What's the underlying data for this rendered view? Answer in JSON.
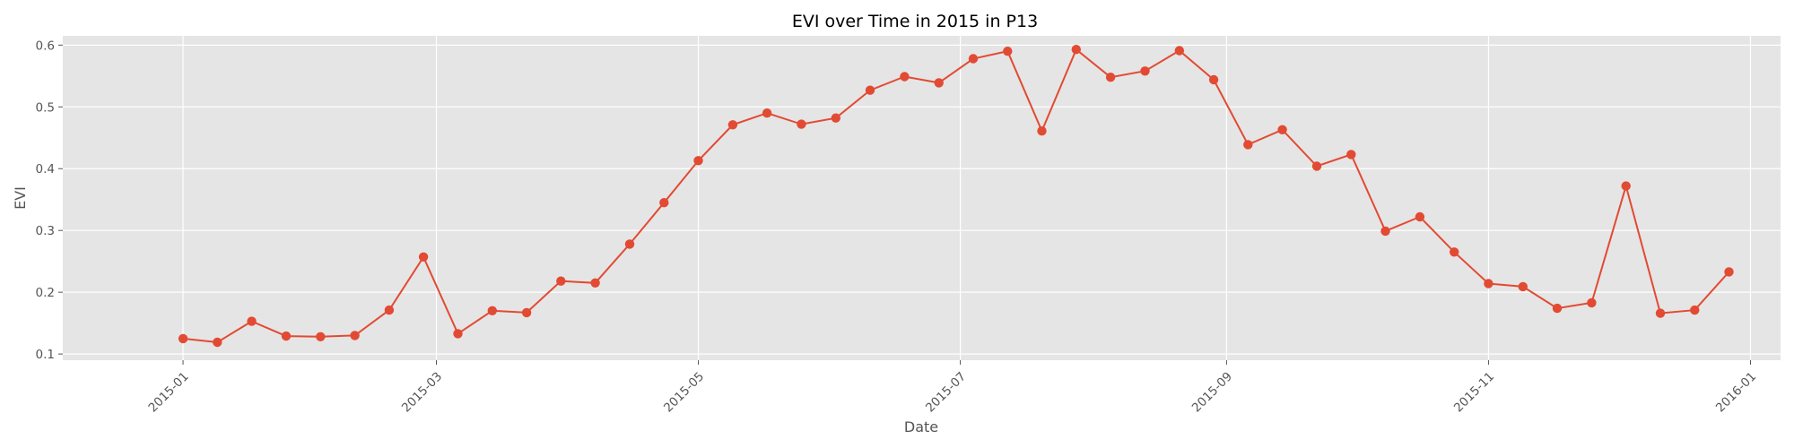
{
  "chart_data": {
    "type": "line",
    "title": "EVI over Time in 2015 in P13",
    "xlabel": "Date",
    "ylabel": "EVI",
    "x_axis_type": "date",
    "xlim": [
      "2014-12-04",
      "2016-01-08"
    ],
    "ylim": [
      0.09,
      0.615
    ],
    "x_ticks": [
      "2015-01-01",
      "2015-03-01",
      "2015-05-01",
      "2015-07-01",
      "2015-09-01",
      "2015-11-01",
      "2016-01-01"
    ],
    "x_tick_labels": [
      "2015-01",
      "2015-03",
      "2015-05",
      "2015-07",
      "2015-09",
      "2015-11",
      "2016-01"
    ],
    "y_ticks": [
      0.1,
      0.2,
      0.3,
      0.4,
      0.5,
      0.6
    ],
    "y_tick_labels": [
      "0.1",
      "0.2",
      "0.3",
      "0.4",
      "0.5",
      "0.6"
    ],
    "grid": true,
    "legend": "none",
    "colors": {
      "line": "#E24A33",
      "background": "#E5E5E5",
      "grid": "#FFFFFF",
      "text": "#555555"
    },
    "series": [
      {
        "x": [
          "2015-01-01",
          "2015-01-09",
          "2015-01-17",
          "2015-01-25",
          "2015-02-02",
          "2015-02-10",
          "2015-02-18",
          "2015-02-26",
          "2015-03-06",
          "2015-03-14",
          "2015-03-22",
          "2015-03-30",
          "2015-04-07",
          "2015-04-15",
          "2015-04-23",
          "2015-05-01",
          "2015-05-09",
          "2015-05-17",
          "2015-05-25",
          "2015-06-02",
          "2015-06-10",
          "2015-06-18",
          "2015-06-26",
          "2015-07-04",
          "2015-07-12",
          "2015-07-20",
          "2015-07-28",
          "2015-08-05",
          "2015-08-13",
          "2015-08-21",
          "2015-08-29",
          "2015-09-06",
          "2015-09-14",
          "2015-09-22",
          "2015-09-30",
          "2015-10-08",
          "2015-10-16",
          "2015-10-24",
          "2015-11-01",
          "2015-11-09",
          "2015-11-17",
          "2015-11-25",
          "2015-12-03",
          "2015-12-11",
          "2015-12-19",
          "2015-12-27"
        ],
        "values": [
          0.125,
          0.119,
          0.153,
          0.129,
          0.128,
          0.13,
          0.171,
          0.257,
          0.133,
          0.17,
          0.167,
          0.218,
          0.215,
          0.278,
          0.345,
          0.413,
          0.471,
          0.49,
          0.472,
          0.482,
          0.527,
          0.549,
          0.539,
          0.578,
          0.59,
          0.461,
          0.593,
          0.548,
          0.558,
          0.591,
          0.544,
          0.439,
          0.463,
          0.404,
          0.423,
          0.299,
          0.322,
          0.265,
          0.214,
          0.209,
          0.174,
          0.183,
          0.372,
          0.166,
          0.171,
          0.233
        ]
      }
    ]
  }
}
